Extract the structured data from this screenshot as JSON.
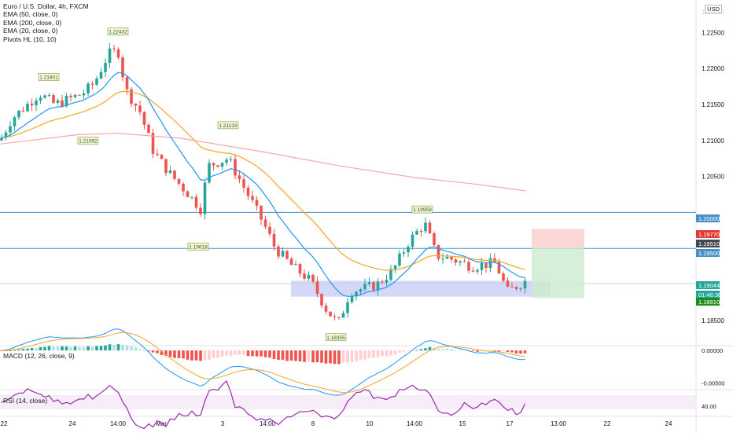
{
  "header": {
    "symbol": "Euro / U.S. Dollar, 4h, FXCM",
    "indicators": [
      "EMA (50, close, 0)",
      "EMA (200, close, 0)",
      "EMA (20, close, 0)",
      "Pivots HL (10, 10)"
    ],
    "currency": "USD"
  },
  "colors": {
    "up": "#26a69a",
    "down": "#ef5350",
    "ema20": "#2196f3",
    "ema50": "#f5a623",
    "ema200": "#f4a9a9",
    "level": "#4a90c8",
    "zone": "#c6c9f5",
    "macd": "#2196f3",
    "signal": "#f5a623",
    "rsi": "#9c27b0"
  },
  "chart_data": [
    {
      "type": "candlestick",
      "title": "Euro / U.S. Dollar, 4h, FXCM",
      "x_tick_labels": [
        "22",
        "24",
        "14:00",
        "Mar",
        "3",
        "14:00",
        "8",
        "10",
        "14:00",
        "15",
        "17",
        "13:00",
        "22",
        "24"
      ],
      "y_ticks": [
        "1.22500",
        "1.22000",
        "1.21500",
        "1.21000",
        "1.20500",
        "1.18500"
      ],
      "ylim": [
        1.1815,
        1.2295
      ],
      "series": [
        {
          "name": "EMA (20, close, 0)"
        },
        {
          "name": "EMA (50, close, 0)"
        },
        {
          "name": "EMA (200, close, 0)"
        }
      ],
      "pivot_labels": [
        {
          "label": "1.21801",
          "value": 1.218
        },
        {
          "label": "1.22432",
          "value": 1.2243
        },
        {
          "label": "1.21092",
          "value": 1.2109
        },
        {
          "label": "1.21133",
          "value": 1.2113
        },
        {
          "label": "1.19618",
          "value": 1.1962
        },
        {
          "label": "1.19959",
          "value": 1.1996
        },
        {
          "label": "1.18355",
          "value": 1.1836
        }
      ],
      "horizontal_levels": [
        1.2,
        1.195
      ],
      "demand_zone": {
        "top": 1.1905,
        "bottom": 1.1883
      },
      "position": {
        "entry": 1.1951,
        "stop": 1.1977,
        "target": 1.1881
      },
      "price_tags": [
        {
          "label": "1.20000",
          "style": "level"
        },
        {
          "label": "1.19770",
          "style": "stop"
        },
        {
          "label": "1.19510",
          "style": "entry"
        },
        {
          "label": "1.19500",
          "style": "level"
        },
        {
          "label": "1.19044",
          "style": "last"
        },
        {
          "label": "01:46:30",
          "style": "last"
        },
        {
          "label": "1.18810",
          "style": "target"
        }
      ]
    },
    {
      "type": "bar",
      "title": "MACD (12, 26, close, 9)",
      "y_ticks": [
        "0.00000",
        "-0.00500"
      ],
      "series": [
        {
          "name": "MACD"
        },
        {
          "name": "Signal"
        },
        {
          "name": "Histogram"
        }
      ]
    },
    {
      "type": "line",
      "title": "RSI (14, close)",
      "y_ticks": [
        "40.00"
      ],
      "series": [
        {
          "name": "RSI"
        }
      ]
    }
  ]
}
